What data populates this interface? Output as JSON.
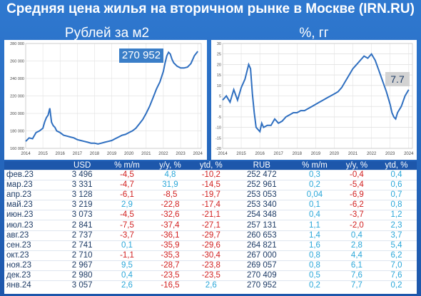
{
  "title": "Средняя цена жилья на вторичном рынке в Москве (IRN.RU)",
  "left_subtitle": "Рублей за м2",
  "right_subtitle": "%, гг",
  "left_callout": "270 952",
  "right_callout": "7.7",
  "colors": {
    "background": "#2f79d0",
    "line": "#2f6fc0",
    "negative": "#d11f1f",
    "positive": "#2aa7d9"
  },
  "chart_data": [
    {
      "type": "line",
      "title": "Рублей за м2",
      "y_ticks": [
        "160 000",
        "180 000",
        "200 000",
        "220 000",
        "240 000",
        "260 000",
        "280 000"
      ],
      "x_ticks": [
        "2014",
        "2015",
        "2016",
        "2017",
        "2018",
        "2019",
        "2020",
        "2021",
        "2022",
        "2023",
        "2024"
      ],
      "ylim": [
        160000,
        280000
      ],
      "xlim": [
        2014,
        2024.2
      ],
      "x": [
        2014.0,
        2014.2,
        2014.4,
        2014.6,
        2014.8,
        2015.0,
        2015.1,
        2015.2,
        2015.3,
        2015.4,
        2015.5,
        2015.6,
        2015.7,
        2015.8,
        2016.0,
        2016.2,
        2016.4,
        2016.6,
        2016.8,
        2017.0,
        2017.2,
        2017.4,
        2017.6,
        2017.8,
        2018.0,
        2018.2,
        2018.4,
        2018.6,
        2018.8,
        2019.0,
        2019.2,
        2019.4,
        2019.6,
        2019.8,
        2020.0,
        2020.2,
        2020.4,
        2020.6,
        2020.8,
        2021.0,
        2021.2,
        2021.4,
        2021.6,
        2021.8,
        2022.0,
        2022.1,
        2022.2,
        2022.3,
        2022.4,
        2022.5,
        2022.6,
        2022.8,
        2023.0,
        2023.2,
        2023.4,
        2023.6,
        2023.8,
        2024.0
      ],
      "y": [
        168000,
        172000,
        171000,
        178000,
        180000,
        183000,
        190000,
        195000,
        198000,
        206000,
        190000,
        186000,
        184000,
        180000,
        178000,
        175000,
        174000,
        173000,
        172000,
        170000,
        169000,
        168000,
        167000,
        166000,
        166000,
        165000,
        166000,
        167000,
        168000,
        169000,
        171000,
        173000,
        175000,
        176000,
        178000,
        180000,
        183000,
        188000,
        193000,
        200000,
        208000,
        218000,
        228000,
        236000,
        248000,
        258000,
        266000,
        270000,
        268000,
        262000,
        258000,
        254000,
        252000,
        252000,
        253000,
        257000,
        266000,
        271000
      ]
    },
    {
      "type": "line",
      "title": "%, гг",
      "y_ticks": [
        "-20",
        "-15",
        "-10",
        "-5",
        "0",
        "5",
        "10",
        "15",
        "20",
        "25",
        "30"
      ],
      "x_ticks": [
        "2014",
        "2015",
        "2016",
        "2017",
        "2018",
        "2019",
        "2020",
        "2021",
        "2022",
        "2023",
        "2024"
      ],
      "ylim": [
        -20,
        30
      ],
      "xlim": [
        2014,
        2024.2
      ],
      "x": [
        2014.0,
        2014.2,
        2014.4,
        2014.6,
        2014.8,
        2015.0,
        2015.2,
        2015.4,
        2015.5,
        2015.6,
        2015.7,
        2015.8,
        2016.0,
        2016.1,
        2016.2,
        2016.4,
        2016.6,
        2016.8,
        2017.0,
        2017.2,
        2017.4,
        2017.6,
        2017.8,
        2018.0,
        2018.2,
        2018.4,
        2018.6,
        2018.8,
        2019.0,
        2019.2,
        2019.4,
        2019.6,
        2019.8,
        2020.0,
        2020.2,
        2020.4,
        2020.6,
        2020.8,
        2021.0,
        2021.2,
        2021.4,
        2021.6,
        2021.8,
        2022.0,
        2022.2,
        2022.4,
        2022.6,
        2022.8,
        2023.0,
        2023.1,
        2023.2,
        2023.3,
        2023.4,
        2023.6,
        2023.8,
        2024.0
      ],
      "y": [
        3,
        5,
        2,
        8,
        3,
        9,
        13,
        20,
        18,
        6,
        -3,
        -10,
        -12,
        -8,
        -10,
        -9,
        -9,
        -6,
        -8,
        -7,
        -5,
        -4,
        -3,
        -3,
        -2,
        -2,
        -1,
        0,
        1,
        2,
        3,
        4,
        5,
        6,
        7,
        9,
        12,
        15,
        18,
        20,
        22,
        24,
        23,
        25,
        22,
        17,
        12,
        7,
        1,
        -3,
        -5,
        -6,
        -3,
        0,
        5,
        8
      ]
    }
  ],
  "table": {
    "headers": [
      "",
      "USD",
      "% m/m",
      "y/y, %",
      "ytd, %",
      "RUB",
      "% m/m",
      "y/y, %",
      "ytd, %"
    ],
    "rows": [
      [
        "фев.23",
        "3 496",
        "-4,5",
        "4,8",
        "-10,2",
        "252 472",
        "0,3",
        "-0,4",
        "0,4"
      ],
      [
        "мар.23",
        "3 331",
        "-4,7",
        "31,9",
        "-14,5",
        "252 961",
        "0,2",
        "-5,4",
        "0,6"
      ],
      [
        "апр.23",
        "3 128",
        "-6,1",
        "-8,5",
        "-19,7",
        "253 053",
        "0,04",
        "-6,9",
        "0,7"
      ],
      [
        "май.23",
        "3 219",
        "2,9",
        "-22,8",
        "-17,4",
        "253 340",
        "0,1",
        "-6,2",
        "0,8"
      ],
      [
        "июн.23",
        "3 073",
        "-4,5",
        "-32,6",
        "-21,1",
        "254 348",
        "0,4",
        "-3,7",
        "1,2"
      ],
      [
        "июл.23",
        "2 841",
        "-7,5",
        "-37,4",
        "-27,1",
        "257 131",
        "1,1",
        "-2,0",
        "2,3"
      ],
      [
        "авг.23",
        "2 737",
        "-3,7",
        "-36,1",
        "-29,7",
        "260 653",
        "1,4",
        "0,4",
        "3,7"
      ],
      [
        "сен.23",
        "2 741",
        "0,1",
        "-35,9",
        "-29,6",
        "264 821",
        "1,6",
        "2,8",
        "5,4"
      ],
      [
        "окт.23",
        "2 710",
        "-1,1",
        "-35,3",
        "-30,4",
        "267 000",
        "0,8",
        "4,4",
        "6,2"
      ],
      [
        "ноя.23",
        "2 967",
        "9,5",
        "-28,7",
        "-23,8",
        "269 057",
        "0,8",
        "6,1",
        "7,0"
      ],
      [
        "дек.23",
        "2 980",
        "0,4",
        "-23,5",
        "-23,5",
        "270 409",
        "0,5",
        "7,6",
        "7,6"
      ],
      [
        "янв.24",
        "3 057",
        "2,6",
        "-16,5",
        "2,6",
        "270 952",
        "0,2",
        "7,7",
        "0,2"
      ]
    ]
  }
}
